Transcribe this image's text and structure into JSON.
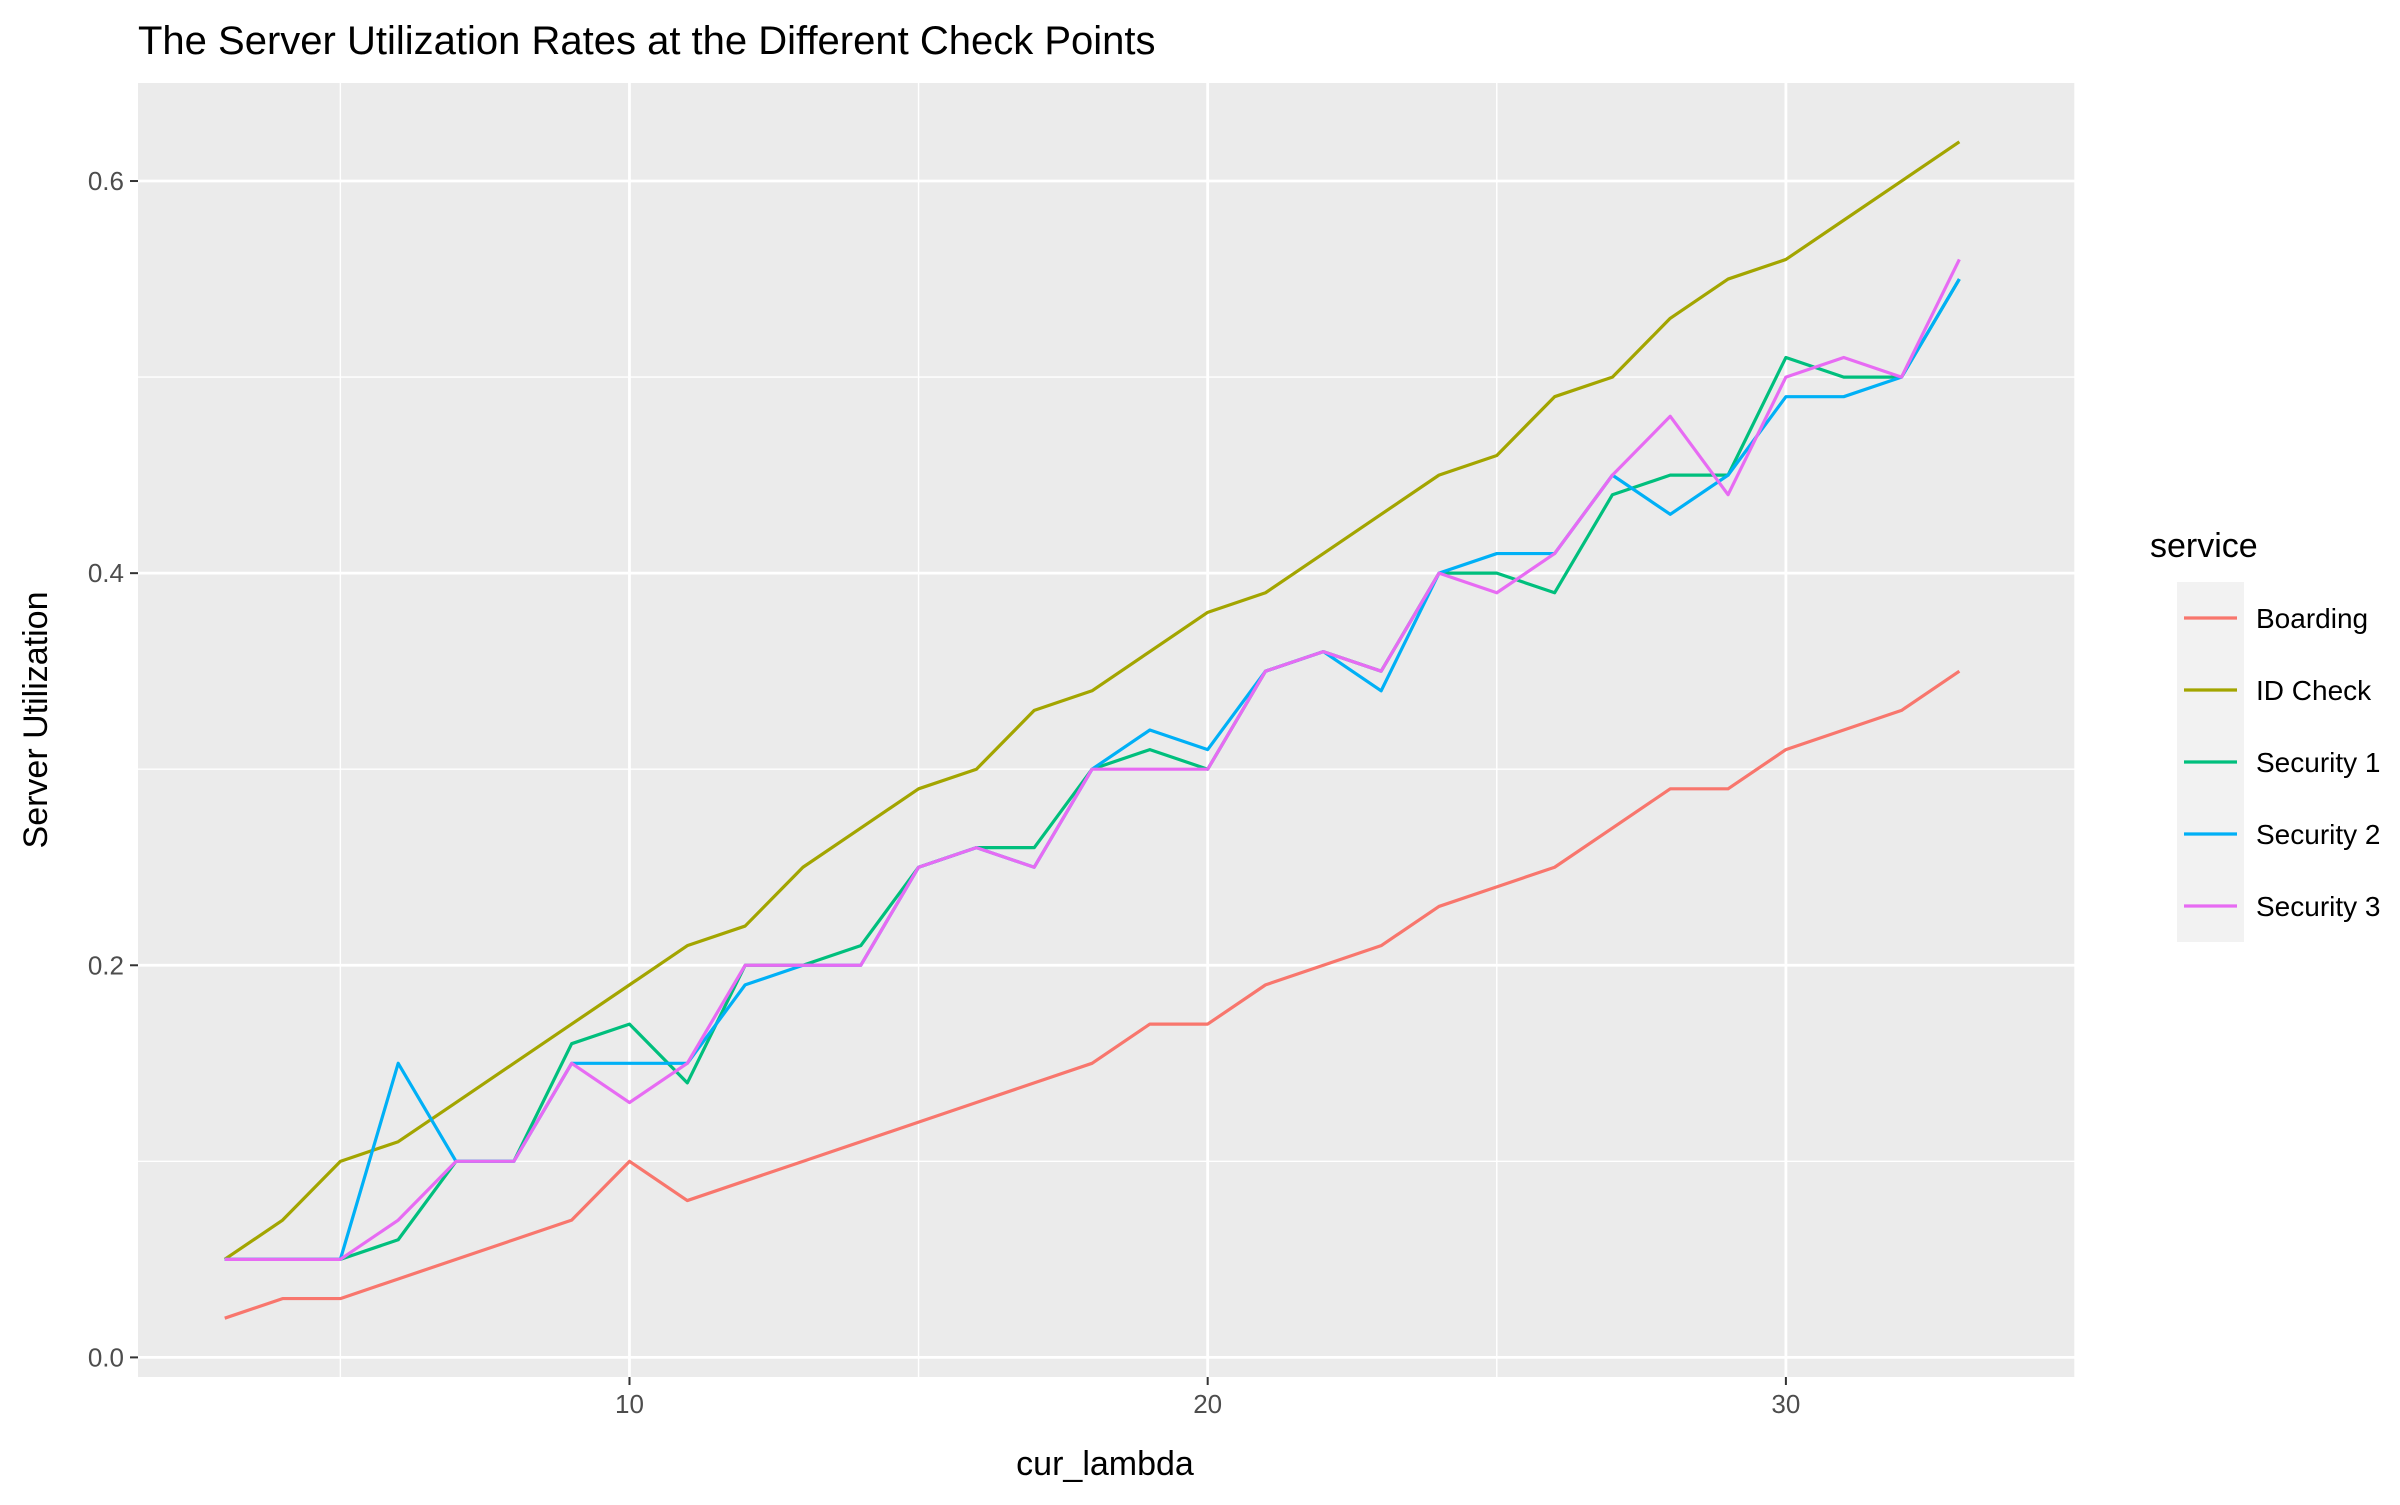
{
  "chart_data": {
    "type": "line",
    "title": "The Server Utilization Rates at the Different Check Points",
    "xlabel": "cur_lambda",
    "ylabel": "Server Utilization",
    "xlim": [
      1.5,
      35.0
    ],
    "ylim": [
      -0.01,
      0.65
    ],
    "x_ticks": [
      10,
      20,
      30
    ],
    "x_tick_labels": [
      "10",
      "20",
      "30"
    ],
    "x_minor_ticks": [
      5,
      15,
      25,
      35
    ],
    "y_ticks": [
      0.0,
      0.2,
      0.4,
      0.6
    ],
    "y_tick_labels": [
      "0.0",
      "0.2",
      "0.4",
      "0.6"
    ],
    "y_minor_ticks": [
      0.1,
      0.3,
      0.5
    ],
    "grid": true,
    "panel_background": "#ebebeb",
    "legend": {
      "title": "service",
      "position": "right"
    },
    "x": [
      3,
      4,
      5,
      6,
      7,
      8,
      9,
      10,
      11,
      12,
      13,
      14,
      15,
      16,
      17,
      18,
      19,
      20,
      21,
      22,
      23,
      24,
      25,
      26,
      27,
      28,
      29,
      30,
      31,
      32,
      33
    ],
    "series": [
      {
        "name": "Boarding",
        "color": "#f8766d",
        "values": [
          0.02,
          0.03,
          0.03,
          0.04,
          0.05,
          0.06,
          0.07,
          0.1,
          0.08,
          0.09,
          0.1,
          0.11,
          0.12,
          0.13,
          0.14,
          0.15,
          0.17,
          0.17,
          0.19,
          0.2,
          0.21,
          0.23,
          0.24,
          0.25,
          0.27,
          0.29,
          0.29,
          0.31,
          0.32,
          0.33,
          0.35
        ]
      },
      {
        "name": "ID Check",
        "color": "#a3a500",
        "values": [
          0.05,
          0.07,
          0.1,
          0.11,
          0.13,
          0.15,
          0.17,
          0.19,
          0.21,
          0.22,
          0.25,
          0.27,
          0.29,
          0.3,
          0.33,
          0.34,
          0.36,
          0.38,
          0.39,
          0.41,
          0.43,
          0.45,
          0.46,
          0.49,
          0.5,
          0.53,
          0.55,
          0.56,
          0.58,
          0.6,
          0.62
        ]
      },
      {
        "name": "Security 1",
        "color": "#00bf7d",
        "values": [
          0.05,
          0.05,
          0.05,
          0.06,
          0.1,
          0.1,
          0.16,
          0.17,
          0.14,
          0.2,
          0.2,
          0.21,
          0.25,
          0.26,
          0.26,
          0.3,
          0.31,
          0.3,
          0.35,
          0.36,
          0.35,
          0.4,
          0.4,
          0.39,
          0.44,
          0.45,
          0.45,
          0.51,
          0.5,
          0.5,
          0.55
        ]
      },
      {
        "name": "Security 2",
        "color": "#00b0f6",
        "values": [
          0.05,
          0.05,
          0.05,
          0.15,
          0.1,
          0.1,
          0.15,
          0.15,
          0.15,
          0.19,
          0.2,
          0.2,
          0.25,
          0.26,
          0.25,
          0.3,
          0.32,
          0.31,
          0.35,
          0.36,
          0.34,
          0.4,
          0.41,
          0.41,
          0.45,
          0.43,
          0.45,
          0.49,
          0.49,
          0.5,
          0.55
        ]
      },
      {
        "name": "Security 3",
        "color": "#e76bf3",
        "values": [
          0.05,
          0.05,
          0.05,
          0.07,
          0.1,
          0.1,
          0.15,
          0.13,
          0.15,
          0.2,
          0.2,
          0.2,
          0.25,
          0.26,
          0.25,
          0.3,
          0.3,
          0.3,
          0.35,
          0.36,
          0.35,
          0.4,
          0.39,
          0.41,
          0.45,
          0.48,
          0.44,
          0.5,
          0.51,
          0.5,
          0.56
        ]
      }
    ]
  }
}
